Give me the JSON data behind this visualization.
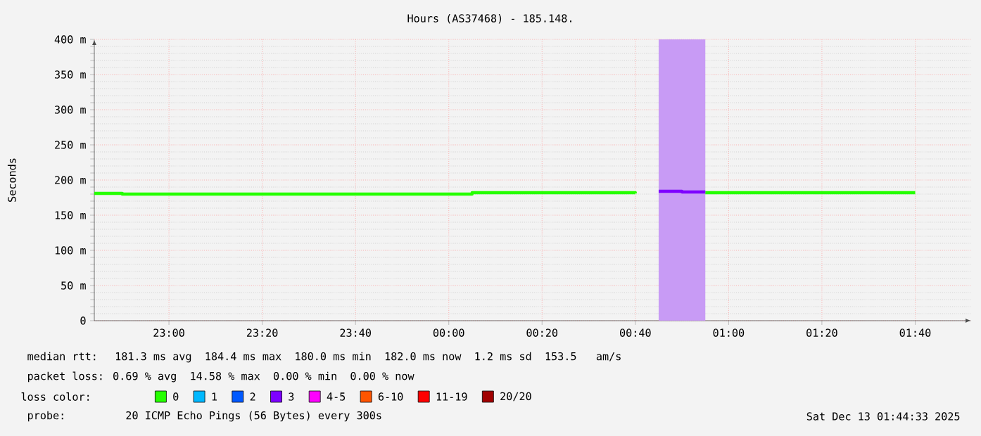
{
  "chart_data": {
    "type": "step",
    "title": "Hours (AS37468) - 185.148.",
    "ylabel": "Seconds",
    "x": [
      "2025-12-12T22:44",
      "2025-12-12T22:50",
      "2025-12-13T00:05",
      "2025-12-13T00:40",
      "2025-12-13T00:45",
      "2025-12-13T00:50",
      "2025-12-13T00:55",
      "2025-12-13T01:40"
    ],
    "series": [
      {
        "name": "0",
        "color": "#26ff00",
        "values": [
          181,
          180,
          182,
          181,
          null,
          null,
          182,
          182
        ]
      },
      {
        "name": "1",
        "color": "#00b8ff",
        "values": [
          null,
          null,
          null,
          null,
          null,
          null,
          null,
          null
        ]
      },
      {
        "name": "2",
        "color": "#0059ff",
        "values": [
          null,
          null,
          null,
          null,
          null,
          null,
          null,
          null
        ]
      },
      {
        "name": "3",
        "color": "#7e00ff",
        "x": [
          "2025-12-13T00:45",
          "2025-12-13T00:50",
          "2025-12-13T00:55"
        ],
        "values": [
          184,
          183,
          183
        ]
      },
      {
        "name": "4-5",
        "color": "#ff00ff",
        "values": [
          null,
          null,
          null,
          null,
          null,
          null,
          null,
          null
        ]
      },
      {
        "name": "6-10",
        "color": "#ff5500",
        "values": [
          null,
          null,
          null,
          null,
          null,
          null,
          null,
          null
        ]
      },
      {
        "name": "11-19",
        "color": "#ff0000",
        "values": [
          null,
          null,
          null,
          null,
          null,
          null,
          null,
          null
        ]
      },
      {
        "name": "20/20",
        "color": "#a10000",
        "values": [
          null,
          null,
          null,
          null,
          null,
          null,
          null,
          null
        ]
      }
    ],
    "legend": "bottom",
    "legend_title": "loss color:",
    "bands": [
      {
        "axis": "x",
        "from": "2025-12-13T00:45",
        "to": "2025-12-13T00:55",
        "color": "#c89bf5"
      }
    ],
    "xlim": [
      "2025-12-12T22:44",
      "2025-12-13T01:52"
    ],
    "ylim": [
      0,
      400
    ],
    "xticks": [
      {
        "value": "2025-12-12T23:00",
        "label": "23:00"
      },
      {
        "value": "2025-12-12T23:20",
        "label": "23:20"
      },
      {
        "value": "2025-12-12T23:40",
        "label": "23:40"
      },
      {
        "value": "2025-12-13T00:00",
        "label": "00:00"
      },
      {
        "value": "2025-12-13T00:20",
        "label": "00:20"
      },
      {
        "value": "2025-12-13T00:40",
        "label": "00:40"
      },
      {
        "value": "2025-12-13T01:00",
        "label": "01:00"
      },
      {
        "value": "2025-12-13T01:20",
        "label": "01:20"
      },
      {
        "value": "2025-12-13T01:40",
        "label": "01:40"
      }
    ],
    "yticks": [
      0,
      {
        "value": 50,
        "label": "50 m"
      },
      {
        "value": 100,
        "label": "100 m"
      },
      {
        "value": 150,
        "label": "150 m"
      },
      {
        "value": 200,
        "label": "200 m"
      },
      {
        "value": 250,
        "label": "250 m"
      },
      {
        "value": 300,
        "label": "300 m"
      },
      {
        "value": 350,
        "label": "350 m"
      },
      {
        "value": 400,
        "label": "400 m"
      }
    ],
    "grid": true,
    "annotations": [
      "median rtt:  181.3 ms avg  184.4 ms max  180.0 ms min  182.0 ms now  1.2 ms sd  153.5   am/s",
      "packet loss: 0.69 % avg  14.58 % max  0.00 % min  0.00 % now",
      "probe:       20 ICMP Echo Pings (56 Bytes) every 300s",
      "Sat Dec 13 01:44:33 2025"
    ]
  }
}
